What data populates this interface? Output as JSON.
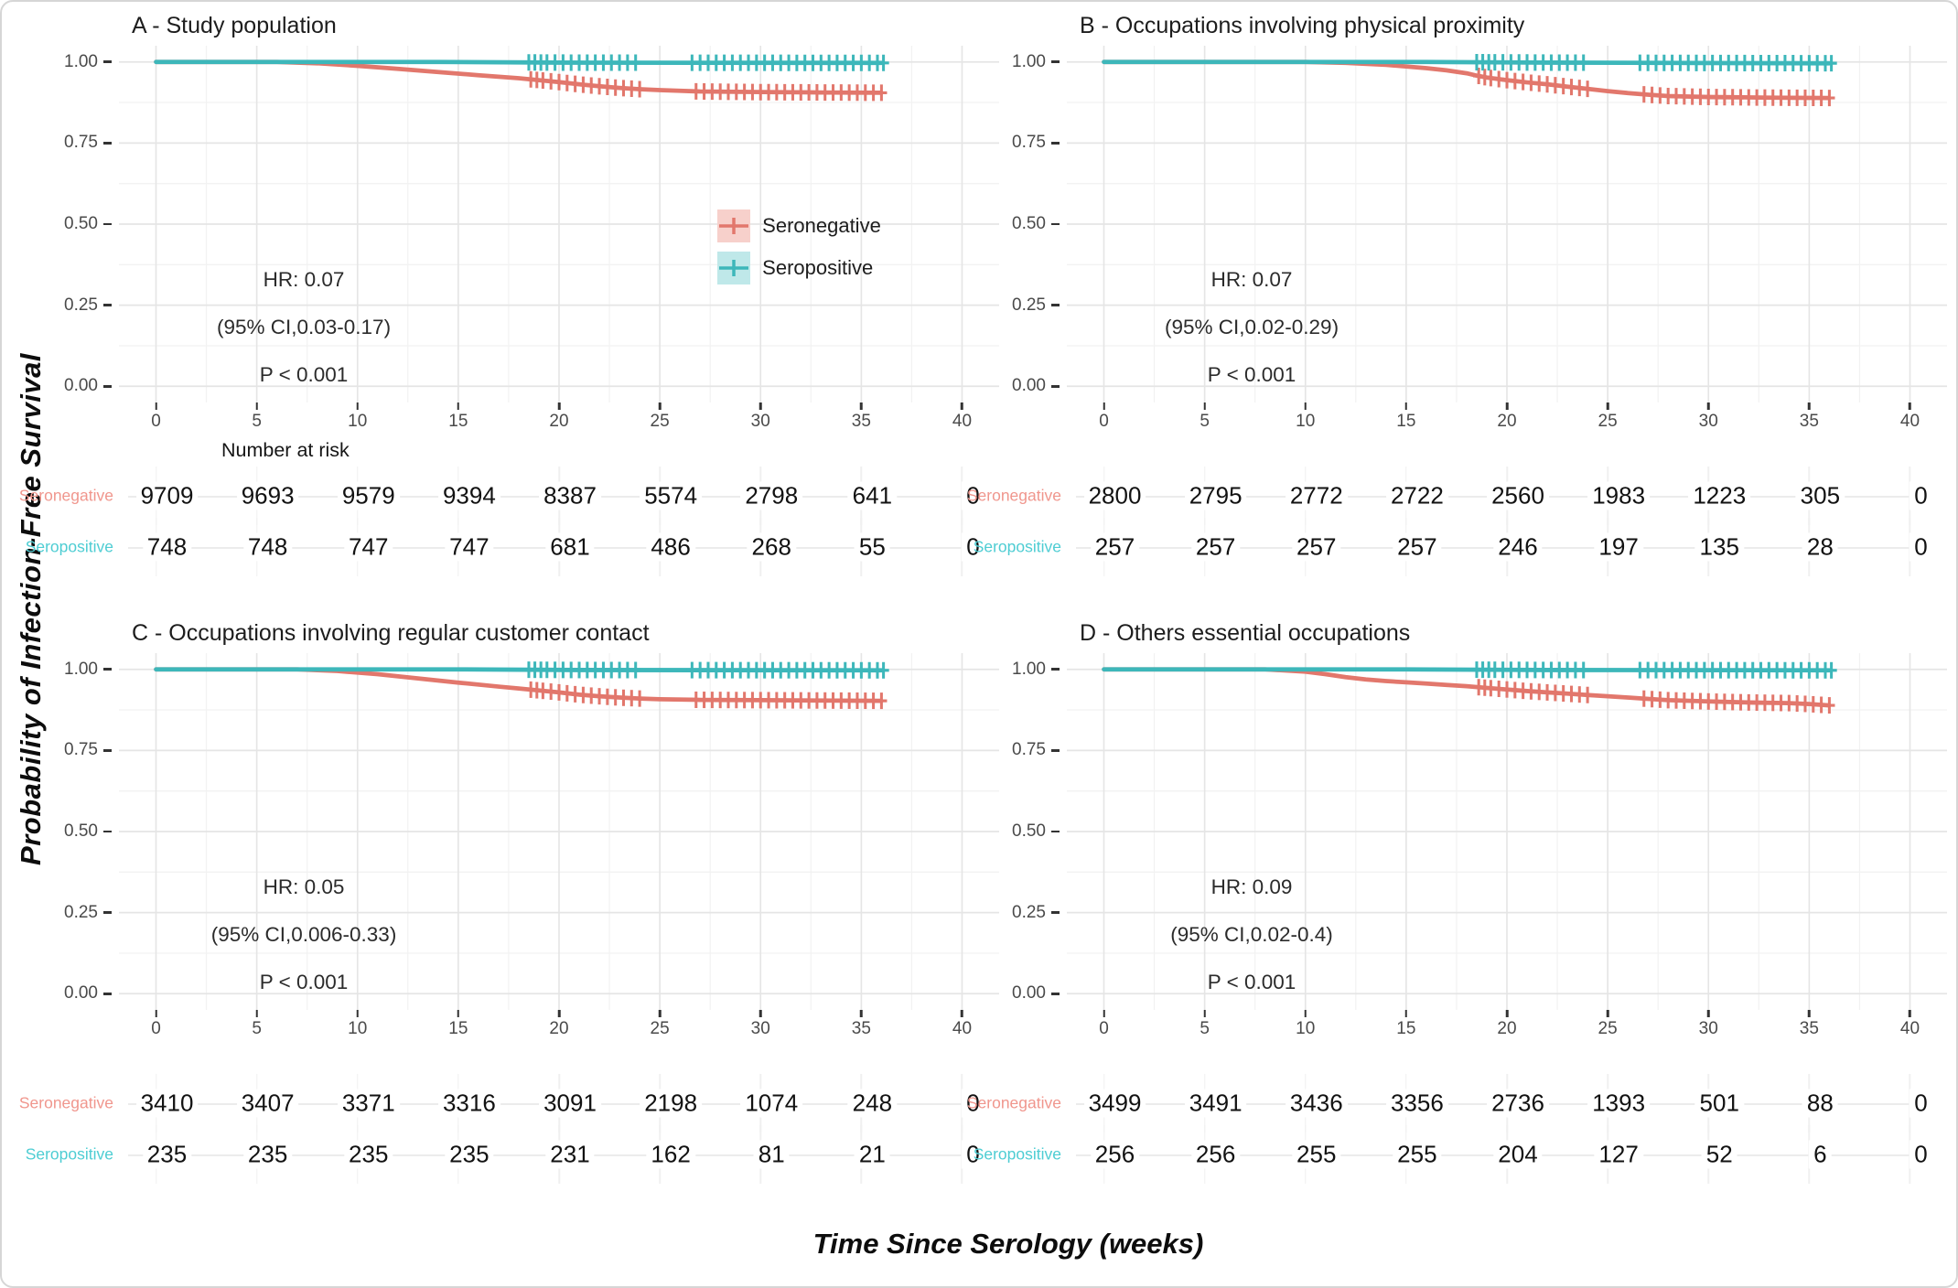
{
  "figure": {
    "y_axis_title": "Probability of Infection-Free Survival",
    "x_axis_title": "Time Since Serology (weeks)",
    "number_at_risk_label": "Number at risk",
    "legend": {
      "items": [
        {
          "label": "Seronegative",
          "stroke": "#e2776c",
          "fill": "#f7d0cb"
        },
        {
          "label": "Seropositive",
          "stroke": "#3db7ba",
          "fill": "#bfe8e9"
        }
      ]
    }
  },
  "colors": {
    "seronegative_curve": "#e2776c",
    "seropositive_curve": "#3db7ba",
    "seronegative_label": "#f0968d",
    "seropositive_label": "#4ecdd3",
    "grid_major": "#e5e5e5",
    "grid_minor": "#f2f2f2",
    "text": "#2b2b2b"
  },
  "axes": {
    "x_ticks": [
      0,
      5,
      10,
      15,
      20,
      25,
      30,
      35,
      40
    ],
    "y_tick_labels": [
      "1.00",
      "0.75",
      "0.50",
      "0.25",
      "0.00"
    ],
    "y_tick_values": [
      1,
      0.75,
      0.5,
      0.25,
      0
    ],
    "xlim": [
      0,
      40
    ],
    "ylim": [
      0,
      1
    ]
  },
  "chart_data": [
    {
      "panel": "A",
      "type": "line",
      "title": "A - Study population",
      "stats": {
        "hr": "HR: 0.07",
        "ci": "(95% CI,0.03-0.17)",
        "p": "P < 0.001"
      },
      "series": [
        {
          "name": "Seronegative",
          "color": "#e2776c",
          "points": [
            [
              0,
              1
            ],
            [
              6,
              1
            ],
            [
              8,
              0.996
            ],
            [
              10,
              0.988
            ],
            [
              12,
              0.979
            ],
            [
              14,
              0.969
            ],
            [
              16,
              0.959
            ],
            [
              18,
              0.95
            ],
            [
              19,
              0.944
            ],
            [
              20,
              0.938
            ],
            [
              21,
              0.931
            ],
            [
              22,
              0.925
            ],
            [
              23,
              0.92
            ],
            [
              24,
              0.916
            ],
            [
              25,
              0.913
            ],
            [
              26,
              0.911
            ],
            [
              27,
              0.909
            ],
            [
              30,
              0.907
            ],
            [
              33,
              0.906
            ],
            [
              36,
              0.905
            ]
          ],
          "censor_weeks": [
            18.6,
            18.9,
            19.2,
            19.6,
            20.0,
            20.4,
            20.8,
            21.2,
            21.6,
            22.0,
            22.4,
            22.8,
            23.2,
            23.6,
            24.0,
            26.8,
            27.2,
            27.6,
            28.0,
            28.4,
            28.8,
            29.2,
            29.6,
            30.0,
            30.4,
            30.8,
            31.2,
            31.6,
            32.0,
            32.4,
            32.8,
            33.2,
            33.6,
            34.0,
            34.4,
            34.8,
            35.2,
            35.6,
            36.0
          ]
        },
        {
          "name": "Seropositive",
          "color": "#3db7ba",
          "points": [
            [
              0,
              1
            ],
            [
              14,
              1
            ],
            [
              20,
              0.998
            ],
            [
              36,
              0.997
            ]
          ],
          "censor_weeks": [
            18.5,
            18.8,
            19.1,
            19.4,
            19.8,
            20.2,
            20.6,
            21.0,
            21.4,
            21.8,
            22.2,
            22.6,
            23.0,
            23.4,
            23.8,
            26.6,
            27.0,
            27.4,
            27.8,
            28.2,
            28.6,
            29.0,
            29.4,
            29.8,
            30.2,
            30.6,
            31.0,
            31.4,
            31.8,
            32.2,
            32.6,
            33.0,
            33.4,
            33.8,
            34.2,
            34.6,
            35.0,
            35.4,
            35.8,
            36.1
          ]
        }
      ],
      "risk_table": {
        "time_points": [
          0,
          5,
          10,
          15,
          20,
          25,
          30,
          35,
          40
        ],
        "rows": [
          {
            "label": "Seronegative",
            "color": "#f0968d",
            "values": [
              9709,
              9693,
              9579,
              9394,
              8387,
              5574,
              2798,
              641,
              0
            ]
          },
          {
            "label": "Seropositive",
            "color": "#4ecdd3",
            "values": [
              748,
              748,
              747,
              747,
              681,
              486,
              268,
              55,
              0
            ]
          }
        ]
      }
    },
    {
      "panel": "B",
      "type": "line",
      "title": "B - Occupations involving physical proximity",
      "stats": {
        "hr": "HR: 0.07",
        "ci": "(95% CI,0.02-0.29)",
        "p": "P < 0.001"
      },
      "series": [
        {
          "name": "Seronegative",
          "color": "#e2776c",
          "points": [
            [
              0,
              1
            ],
            [
              10,
              1
            ],
            [
              12,
              0.997
            ],
            [
              14,
              0.991
            ],
            [
              16,
              0.981
            ],
            [
              17,
              0.974
            ],
            [
              18,
              0.965
            ],
            [
              18.5,
              0.958
            ],
            [
              19,
              0.952
            ],
            [
              20,
              0.944
            ],
            [
              21,
              0.937
            ],
            [
              22,
              0.931
            ],
            [
              23,
              0.924
            ],
            [
              24,
              0.917
            ],
            [
              25,
              0.91
            ],
            [
              26,
              0.904
            ],
            [
              27,
              0.899
            ],
            [
              28,
              0.895
            ],
            [
              30,
              0.892
            ],
            [
              33,
              0.89
            ],
            [
              36,
              0.889
            ]
          ],
          "censor_weeks": [
            18.6,
            18.9,
            19.2,
            19.6,
            20.0,
            20.4,
            20.8,
            21.2,
            21.6,
            22.0,
            22.4,
            22.8,
            23.2,
            23.6,
            24.0,
            26.8,
            27.2,
            27.6,
            28.0,
            28.4,
            28.8,
            29.2,
            29.6,
            30.0,
            30.4,
            30.8,
            31.2,
            31.6,
            32.0,
            32.4,
            32.8,
            33.2,
            33.6,
            34.0,
            34.4,
            34.8,
            35.2,
            35.6,
            36.0
          ]
        },
        {
          "name": "Seropositive",
          "color": "#3db7ba",
          "points": [
            [
              0,
              1
            ],
            [
              16,
              1
            ],
            [
              22,
              0.998
            ],
            [
              36,
              0.996
            ]
          ],
          "censor_weeks": [
            18.5,
            18.8,
            19.1,
            19.4,
            19.8,
            20.2,
            20.6,
            21.0,
            21.4,
            21.8,
            22.2,
            22.6,
            23.0,
            23.4,
            23.8,
            26.6,
            27.0,
            27.4,
            27.8,
            28.2,
            28.6,
            29.0,
            29.4,
            29.8,
            30.2,
            30.6,
            31.0,
            31.4,
            31.8,
            32.2,
            32.6,
            33.0,
            33.4,
            33.8,
            34.2,
            34.6,
            35.0,
            35.4,
            35.8,
            36.1
          ]
        }
      ],
      "risk_table": {
        "time_points": [
          0,
          5,
          10,
          15,
          20,
          25,
          30,
          35,
          40
        ],
        "rows": [
          {
            "label": "Seronegative",
            "color": "#f0968d",
            "values": [
              2800,
              2795,
              2772,
              2722,
              2560,
              1983,
              1223,
              305,
              0
            ]
          },
          {
            "label": "Seropositive",
            "color": "#4ecdd3",
            "values": [
              257,
              257,
              257,
              257,
              246,
              197,
              135,
              28,
              0
            ]
          }
        ]
      }
    },
    {
      "panel": "C",
      "type": "line",
      "title": "C - Occupations involving regular customer contact",
      "stats": {
        "hr": "HR: 0.05",
        "ci": "(95% CI,0.006-0.33)",
        "p": "P < 0.001"
      },
      "series": [
        {
          "name": "Seronegative",
          "color": "#e2776c",
          "points": [
            [
              0,
              1
            ],
            [
              7,
              1
            ],
            [
              9,
              0.995
            ],
            [
              11,
              0.985
            ],
            [
              13,
              0.972
            ],
            [
              15,
              0.959
            ],
            [
              17,
              0.947
            ],
            [
              18,
              0.941
            ],
            [
              19,
              0.935
            ],
            [
              20,
              0.929
            ],
            [
              21,
              0.922
            ],
            [
              22,
              0.917
            ],
            [
              23,
              0.913
            ],
            [
              24,
              0.91
            ],
            [
              25,
              0.908
            ],
            [
              27,
              0.906
            ],
            [
              30,
              0.905
            ],
            [
              36,
              0.903
            ]
          ],
          "censor_weeks": [
            18.6,
            18.9,
            19.2,
            19.6,
            20.0,
            20.4,
            20.8,
            21.2,
            21.6,
            22.0,
            22.4,
            22.8,
            23.2,
            23.6,
            24.0,
            26.8,
            27.2,
            27.6,
            28.0,
            28.4,
            28.8,
            29.2,
            29.6,
            30.0,
            30.4,
            30.8,
            31.2,
            31.6,
            32.0,
            32.4,
            32.8,
            33.2,
            33.6,
            34.0,
            34.4,
            34.8,
            35.2,
            35.6,
            36.0
          ]
        },
        {
          "name": "Seropositive",
          "color": "#3db7ba",
          "points": [
            [
              0,
              1
            ],
            [
              15,
              1
            ],
            [
              21,
              0.998
            ],
            [
              36,
              0.997
            ]
          ],
          "censor_weeks": [
            18.5,
            18.8,
            19.1,
            19.4,
            19.8,
            20.2,
            20.6,
            21.0,
            21.4,
            21.8,
            22.2,
            22.6,
            23.0,
            23.4,
            23.8,
            26.6,
            27.0,
            27.4,
            27.8,
            28.2,
            28.6,
            29.0,
            29.4,
            29.8,
            30.2,
            30.6,
            31.0,
            31.4,
            31.8,
            32.2,
            32.6,
            33.0,
            33.4,
            33.8,
            34.2,
            34.6,
            35.0,
            35.4,
            35.8,
            36.1
          ]
        }
      ],
      "risk_table": {
        "time_points": [
          0,
          5,
          10,
          15,
          20,
          25,
          30,
          35,
          40
        ],
        "rows": [
          {
            "label": "Seronegative",
            "color": "#f0968d",
            "values": [
              3410,
              3407,
              3371,
              3316,
              3091,
              2198,
              1074,
              248,
              0
            ]
          },
          {
            "label": "Seropositive",
            "color": "#4ecdd3",
            "values": [
              235,
              235,
              235,
              235,
              231,
              162,
              81,
              21,
              0
            ]
          }
        ]
      }
    },
    {
      "panel": "D",
      "type": "line",
      "title": "D - Others essential occupations",
      "stats": {
        "hr": "HR: 0.09",
        "ci": "(95% CI,0.02-0.4)",
        "p": "P < 0.001"
      },
      "series": [
        {
          "name": "Seronegative",
          "color": "#e2776c",
          "points": [
            [
              0,
              1
            ],
            [
              8,
              1
            ],
            [
              10,
              0.993
            ],
            [
              11,
              0.985
            ],
            [
              12,
              0.976
            ],
            [
              13,
              0.969
            ],
            [
              14,
              0.964
            ],
            [
              15,
              0.96
            ],
            [
              16,
              0.956
            ],
            [
              17,
              0.952
            ],
            [
              18,
              0.948
            ],
            [
              19,
              0.943
            ],
            [
              20,
              0.938
            ],
            [
              21,
              0.933
            ],
            [
              22,
              0.929
            ],
            [
              23,
              0.925
            ],
            [
              24,
              0.921
            ],
            [
              25,
              0.917
            ],
            [
              26,
              0.913
            ],
            [
              27,
              0.909
            ],
            [
              28,
              0.905
            ],
            [
              30,
              0.901
            ],
            [
              32,
              0.898
            ],
            [
              34,
              0.896
            ],
            [
              35,
              0.893
            ],
            [
              36,
              0.889
            ]
          ],
          "censor_weeks": [
            18.6,
            18.9,
            19.2,
            19.6,
            20.0,
            20.4,
            20.8,
            21.2,
            21.6,
            22.0,
            22.4,
            22.8,
            23.2,
            23.6,
            24.0,
            26.8,
            27.2,
            27.6,
            28.0,
            28.4,
            28.8,
            29.2,
            29.6,
            30.0,
            30.4,
            30.8,
            31.2,
            31.6,
            32.0,
            32.4,
            32.8,
            33.2,
            33.6,
            34.0,
            34.4,
            34.8,
            35.2,
            35.6,
            36.0
          ]
        },
        {
          "name": "Seropositive",
          "color": "#3db7ba",
          "points": [
            [
              0,
              1
            ],
            [
              15,
              1
            ],
            [
              22,
              0.998
            ],
            [
              36,
              0.997
            ]
          ],
          "censor_weeks": [
            18.5,
            18.8,
            19.1,
            19.4,
            19.8,
            20.2,
            20.6,
            21.0,
            21.4,
            21.8,
            22.2,
            22.6,
            23.0,
            23.4,
            23.8,
            26.6,
            27.0,
            27.4,
            27.8,
            28.2,
            28.6,
            29.0,
            29.4,
            29.8,
            30.2,
            30.6,
            31.0,
            31.4,
            31.8,
            32.2,
            32.6,
            33.0,
            33.4,
            33.8,
            34.2,
            34.6,
            35.0,
            35.4,
            35.8,
            36.1
          ]
        }
      ],
      "risk_table": {
        "time_points": [
          0,
          5,
          10,
          15,
          20,
          25,
          30,
          35,
          40
        ],
        "rows": [
          {
            "label": "Seronegative",
            "color": "#f0968d",
            "values": [
              3499,
              3491,
              3436,
              3356,
              2736,
              1393,
              501,
              88,
              0
            ]
          },
          {
            "label": "Seropositive",
            "color": "#4ecdd3",
            "values": [
              256,
              256,
              255,
              255,
              204,
              127,
              52,
              6,
              0
            ]
          }
        ]
      }
    }
  ]
}
